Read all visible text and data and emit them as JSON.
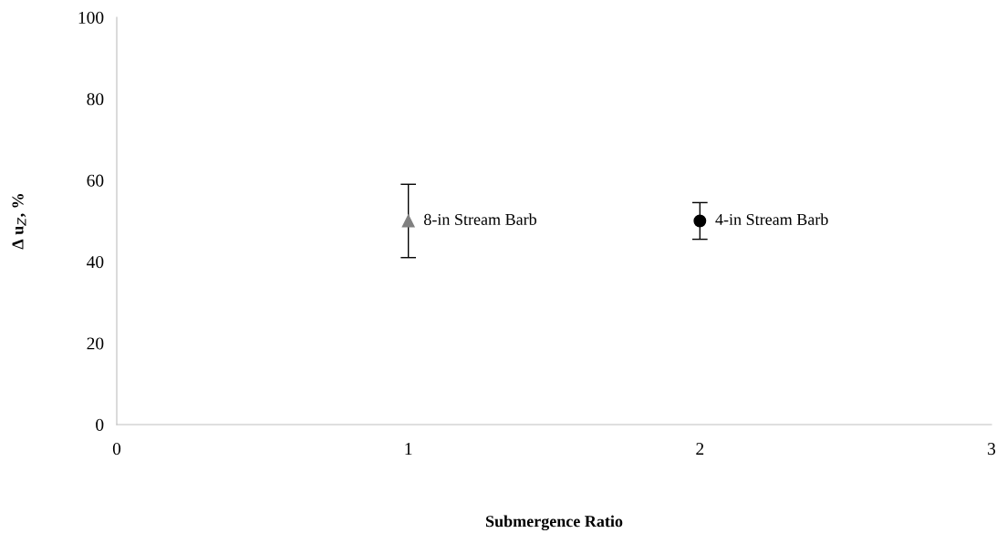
{
  "chart_data": {
    "type": "scatter",
    "xlabel": "Submergence Ratio",
    "ylabel": "Δ u$_{Z}$, %",
    "series": [
      {
        "name": "8-in Stream Barb",
        "color": "#808080",
        "marker": "triangle",
        "x": [
          1
        ],
        "values": [
          50
        ],
        "errors": [
          [
            41,
            59
          ]
        ]
      },
      {
        "name": "4-in Stream Barb",
        "color": "#000000",
        "marker": "circle",
        "x": [
          2
        ],
        "values": [
          50
        ],
        "errors": [
          [
            45.5,
            54.5
          ]
        ]
      }
    ],
    "xlim": [
      0,
      3
    ],
    "xticks": [
      0,
      1,
      2,
      3
    ],
    "ylim": [
      0,
      100
    ],
    "yticks": [
      0,
      20,
      40,
      60,
      80,
      100
    ],
    "grid": false,
    "legend": false
  }
}
